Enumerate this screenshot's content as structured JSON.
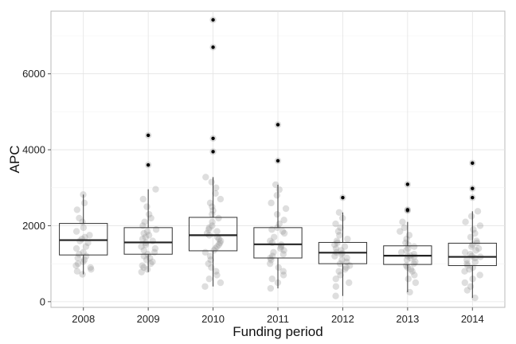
{
  "chart_data": {
    "type": "box",
    "title": "",
    "xlabel": "Funding period",
    "ylabel": "APC",
    "categories": [
      "2008",
      "2009",
      "2010",
      "2011",
      "2012",
      "2013",
      "2014"
    ],
    "ylim": [
      -150,
      7650
    ],
    "yticks": [
      0,
      2000,
      4000,
      6000
    ],
    "grid": true,
    "boxes": [
      {
        "category": "2008",
        "q1": 1230,
        "median": 1620,
        "q3": 2060,
        "whisker_low": 720,
        "whisker_high": 2820,
        "outliers": []
      },
      {
        "category": "2009",
        "q1": 1250,
        "median": 1560,
        "q3": 1950,
        "whisker_low": 780,
        "whisker_high": 2960,
        "outliers": [
          3600,
          4380
        ]
      },
      {
        "category": "2010",
        "q1": 1340,
        "median": 1750,
        "q3": 2220,
        "whisker_low": 400,
        "whisker_high": 3280,
        "outliers": [
          3950,
          4300,
          6700,
          7420
        ]
      },
      {
        "category": "2011",
        "q1": 1150,
        "median": 1510,
        "q3": 1950,
        "whisker_low": 350,
        "whisker_high": 3080,
        "outliers": [
          3710,
          4660
        ]
      },
      {
        "category": "2012",
        "q1": 1000,
        "median": 1290,
        "q3": 1560,
        "whisker_low": 150,
        "whisker_high": 2350,
        "outliers": [
          2740
        ]
      },
      {
        "category": "2013",
        "q1": 980,
        "median": 1210,
        "q3": 1470,
        "whisker_low": 250,
        "whisker_high": 2100,
        "outliers": [
          2400,
          2420,
          3090
        ]
      },
      {
        "category": "2014",
        "q1": 950,
        "median": 1180,
        "q3": 1540,
        "whisker_low": 100,
        "whisker_high": 2380,
        "outliers": [
          2740,
          2980,
          3650
        ]
      }
    ],
    "jitter_points": [
      [
        2820,
        2600,
        2420,
        2200,
        2100,
        1950,
        1850,
        1750,
        1700,
        1650,
        1600,
        1550,
        1450,
        1400,
        1300,
        1250,
        1200,
        1150,
        1100,
        1050,
        1000,
        950,
        900,
        850,
        800,
        720
      ],
      [
        2960,
        2700,
        2500,
        2300,
        2200,
        2100,
        2000,
        1900,
        1850,
        1800,
        1750,
        1700,
        1650,
        1600,
        1550,
        1500,
        1450,
        1400,
        1350,
        1300,
        1250,
        1200,
        1150,
        1100,
        1050,
        1000,
        950,
        900,
        850,
        780
      ],
      [
        3280,
        3150,
        3000,
        2850,
        2700,
        2600,
        2500,
        2400,
        2300,
        2200,
        2100,
        2000,
        1950,
        1900,
        1850,
        1800,
        1750,
        1700,
        1650,
        1600,
        1550,
        1500,
        1450,
        1400,
        1350,
        1300,
        1200,
        1100,
        1000,
        900,
        800,
        700,
        600,
        500,
        400
      ],
      [
        3080,
        2950,
        2800,
        2600,
        2450,
        2300,
        2150,
        2050,
        1950,
        1900,
        1850,
        1800,
        1700,
        1600,
        1550,
        1500,
        1450,
        1400,
        1350,
        1300,
        1250,
        1200,
        1150,
        1100,
        1000,
        900,
        800,
        700,
        600,
        500,
        350
      ],
      [
        2350,
        2200,
        2050,
        1950,
        1850,
        1750,
        1650,
        1600,
        1550,
        1500,
        1450,
        1400,
        1350,
        1300,
        1280,
        1250,
        1200,
        1150,
        1100,
        1050,
        1000,
        950,
        900,
        850,
        800,
        700,
        600,
        500,
        400,
        150
      ],
      [
        2100,
        1950,
        1850,
        1750,
        1650,
        1550,
        1500,
        1450,
        1400,
        1350,
        1300,
        1250,
        1220,
        1200,
        1180,
        1150,
        1100,
        1050,
        1000,
        950,
        900,
        850,
        800,
        700,
        600,
        500,
        250
      ],
      [
        2380,
        2250,
        2100,
        2000,
        1900,
        1800,
        1700,
        1600,
        1550,
        1500,
        1450,
        1400,
        1350,
        1300,
        1250,
        1200,
        1180,
        1150,
        1100,
        1050,
        1000,
        950,
        900,
        850,
        800,
        700,
        600,
        500,
        400,
        300,
        100
      ]
    ]
  }
}
